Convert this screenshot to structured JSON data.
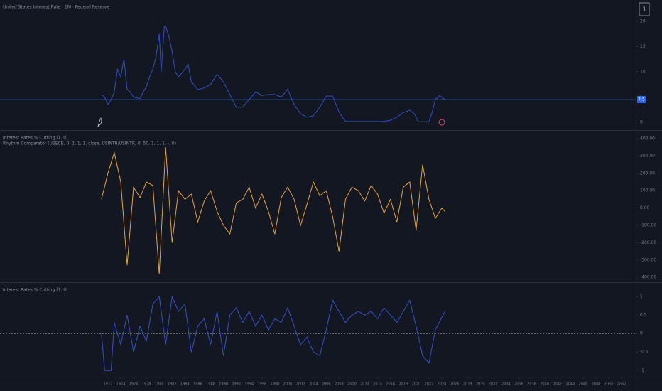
{
  "chart_data": [
    {
      "type": "line",
      "title": "United States Interest Rate · 1M · Federal Reserve",
      "color": "#2f4fc7",
      "x": [
        1971.0,
        1971.5,
        1972,
        1972.5,
        1973,
        1973.5,
        1974,
        1974.5,
        1975,
        1975.5,
        1976,
        1977,
        1977.5,
        1978,
        1978.5,
        1979,
        1979.5,
        1980,
        1980.3,
        1980.8,
        1981,
        1981.5,
        1982,
        1982.5,
        1983,
        1984,
        1984.5,
        1985,
        1986,
        1987,
        1988,
        1989,
        1990,
        1991,
        1992,
        1993,
        1994,
        1995,
        1996,
        1997,
        1998,
        1999,
        2000,
        2001,
        2002,
        2003,
        2004,
        2005,
        2006,
        2007,
        2008,
        2009,
        2012,
        2015,
        2016,
        2017,
        2018,
        2019,
        2019.8,
        2020.3,
        2022,
        2022.5,
        2023,
        2023.6,
        2024.5
      ],
      "values": [
        5.5,
        5.0,
        3.5,
        4.5,
        6,
        10.5,
        9,
        12.5,
        6.5,
        6,
        5,
        4.7,
        6,
        7,
        9,
        10.5,
        13,
        17.5,
        10,
        19,
        19,
        17,
        14,
        10,
        9,
        10.5,
        11.5,
        8,
        6.5,
        6.8,
        7.5,
        9.5,
        8,
        5.5,
        3,
        3,
        4.5,
        6,
        5.3,
        5.5,
        5.5,
        5,
        6.5,
        3.5,
        1.7,
        1,
        1.3,
        3,
        5.2,
        5.2,
        2,
        0.15,
        0.15,
        0.15,
        0.4,
        1,
        1.9,
        2.4,
        1.6,
        0.1,
        0.1,
        2,
        4.5,
        5.3,
        4.5
      ],
      "xlim": [
        1955.2,
        2054.2
      ],
      "ylim": [
        -1.55,
        24.2
      ],
      "yticks": [
        0,
        5,
        10,
        15,
        20
      ]
    },
    {
      "type": "line",
      "title": "Interest Rates % Cutting (1, 0)",
      "subtitle": "Rhythm Comparator (USECB, 0, 1, 1, 1, close, USINTR/USINTR, 0, 50, 1, 1, 1, -, 0)",
      "color": "#e8a33b",
      "x": [
        1971,
        1972,
        1973,
        1974,
        1975,
        1976,
        1977,
        1978,
        1979,
        1980,
        1981,
        1982,
        1983,
        1984,
        1985,
        1986,
        1987,
        1988,
        1989,
        1990,
        1991,
        1992,
        1993,
        1994,
        1995,
        1996,
        1997,
        1998,
        1999,
        2000,
        2001,
        2002,
        2003,
        2004,
        2005,
        2006,
        2007,
        2008,
        2009,
        2010,
        2011,
        2012,
        2013,
        2014,
        2015,
        2016,
        2017,
        2018,
        2019,
        2020,
        2021,
        2022,
        2023,
        2024,
        2024.5
      ],
      "values": [
        50,
        200,
        320,
        150,
        -330,
        120,
        60,
        150,
        130,
        -380,
        350,
        -200,
        100,
        50,
        80,
        -80,
        40,
        100,
        -20,
        -100,
        -150,
        30,
        50,
        120,
        0,
        80,
        -20,
        -150,
        60,
        120,
        50,
        -100,
        20,
        150,
        70,
        100,
        -50,
        -250,
        50,
        120,
        100,
        40,
        130,
        80,
        -30,
        50,
        -80,
        120,
        150,
        -130,
        250,
        50,
        -60,
        0,
        -20
      ],
      "xlim": [
        1955.2,
        2054.2
      ],
      "ylim": [
        -428,
        445
      ],
      "yticks": [
        {
          "value": 400,
          "label": "400.00"
        },
        {
          "value": 300,
          "label": "300.00"
        },
        {
          "value": 200,
          "label": "200.00"
        },
        {
          "value": 100,
          "label": "100.00"
        },
        {
          "value": 0,
          "label": "0.00"
        },
        {
          "value": -100,
          "label": "-100.00"
        },
        {
          "value": -200,
          "label": "-200.00"
        },
        {
          "value": -300,
          "label": "-300.00"
        },
        {
          "value": -400,
          "label": "-400.00"
        }
      ]
    },
    {
      "type": "line",
      "title": "Interest Rates % Cutting (1, 0)",
      "color": "#3553c9",
      "zero_line": true,
      "x": [
        1971,
        1971.5,
        1972.5,
        1973,
        1974,
        1975,
        1976,
        1977,
        1978,
        1979,
        1980,
        1981,
        1982,
        1983,
        1984,
        1985,
        1986,
        1987,
        1988,
        1989,
        1990,
        1991,
        1992,
        1993,
        1994,
        1995,
        1996,
        1997,
        1998,
        1999,
        2000,
        2001,
        2002,
        2003,
        2004,
        2005,
        2006,
        2007,
        2008,
        2009,
        2010,
        2011,
        2012,
        2013,
        2014,
        2015,
        2016,
        2017,
        2018,
        2019,
        2020,
        2021,
        2022,
        2023,
        2024.5
      ],
      "values": [
        0,
        -1,
        -1,
        0.3,
        -0.3,
        0.5,
        -0.5,
        0.2,
        -0.2,
        0.8,
        1,
        -0.3,
        1,
        0.6,
        0.8,
        -0.5,
        0.2,
        0.4,
        -0.3,
        0.6,
        -0.6,
        0.5,
        0.7,
        0.3,
        0.6,
        0.2,
        0.5,
        0.1,
        0.4,
        0.3,
        0.7,
        0.2,
        -0.3,
        -0.1,
        -0.5,
        -0.6,
        0.1,
        0.9,
        0.6,
        0.3,
        0.5,
        0.6,
        0.5,
        0.6,
        0.4,
        0.7,
        0.5,
        0.3,
        0.6,
        0.9,
        0.2,
        -0.6,
        -0.8,
        0.1,
        0.6
      ],
      "xlim": [
        1955.2,
        2054.2
      ],
      "ylim": [
        -1.17,
        1.37
      ],
      "yticks": [
        -1,
        -0.5,
        0,
        0.5,
        1
      ],
      "xticks": [
        1972,
        1974,
        1976,
        1978,
        1980,
        1982,
        1984,
        1986,
        1988,
        1990,
        1992,
        1994,
        1996,
        1998,
        2000,
        2002,
        2004,
        2006,
        2008,
        2010,
        2012,
        2014,
        2016,
        2018,
        2020,
        2022,
        2024,
        2026,
        2028,
        2030,
        2032,
        2034,
        2036,
        2038,
        2040,
        2042,
        2044,
        2046,
        2048,
        2050,
        2052
      ]
    }
  ],
  "ui": {
    "scale_button": "1"
  }
}
